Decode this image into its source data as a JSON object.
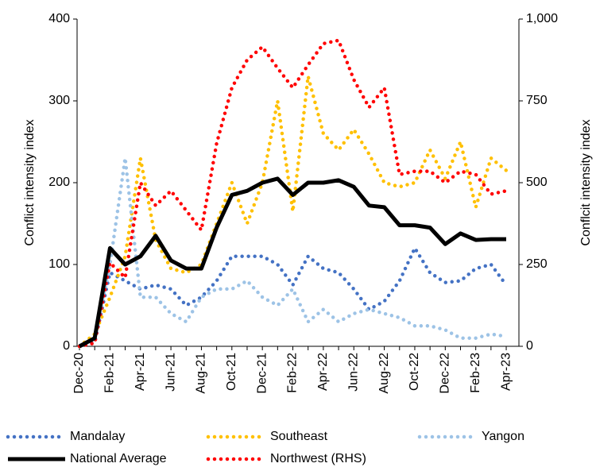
{
  "chart_data": {
    "type": "line",
    "y_label": "Conflict intensity index",
    "y2_label": "Conflcit intensity index",
    "categories": [
      "Dec-20",
      null,
      "Feb-21",
      null,
      "Apr-21",
      null,
      "Jun-21",
      null,
      "Aug-21",
      null,
      "Oct-21",
      null,
      "Dec-21",
      null,
      "Feb-22",
      null,
      "Apr-22",
      null,
      "Jun-22",
      null,
      "Aug-22",
      null,
      "Oct-22",
      null,
      "Dec-22",
      null,
      "Feb-23",
      null,
      "Apr-23"
    ],
    "ylim": [
      0,
      400
    ],
    "yticks": [
      0,
      100,
      200,
      300,
      400
    ],
    "y2lim": [
      0,
      1000
    ],
    "y2ticks": [
      0,
      250,
      500,
      750,
      {
        "value": 1000,
        "label": "1,000"
      }
    ],
    "series": [
      {
        "name": "Mandalay",
        "color": "#4472c4",
        "line_style": "dotted",
        "values": [
          0,
          5,
          90,
          80,
          70,
          75,
          70,
          50,
          60,
          80,
          110,
          110,
          110,
          100,
          75,
          110,
          95,
          90,
          70,
          45,
          55,
          80,
          120,
          90,
          78,
          80,
          95,
          100,
          75
        ]
      },
      {
        "name": "Southeast",
        "color": "#ffc000",
        "line_style": "dotted",
        "values": [
          0,
          15,
          60,
          110,
          230,
          130,
          95,
          90,
          100,
          150,
          200,
          150,
          200,
          300,
          165,
          330,
          260,
          240,
          265,
          235,
          200,
          195,
          200,
          240,
          205,
          250,
          170,
          230,
          215
        ]
      },
      {
        "name": "Yangon",
        "color": "#9dc3e6",
        "line_style": "dotted",
        "values": [
          0,
          10,
          100,
          230,
          60,
          60,
          40,
          30,
          60,
          70,
          70,
          80,
          60,
          50,
          70,
          30,
          45,
          30,
          40,
          45,
          40,
          35,
          25,
          25,
          20,
          10,
          10,
          15,
          12
        ]
      },
      {
        "name": "National Average",
        "color": "#000000",
        "line_style": "solid",
        "values": [
          0,
          10,
          120,
          100,
          110,
          135,
          105,
          95,
          95,
          145,
          185,
          190,
          200,
          205,
          185,
          200,
          200,
          203,
          195,
          172,
          170,
          148,
          148,
          145,
          125,
          138,
          130,
          131,
          131
        ]
      },
      {
        "name": "Northwest (RHS)",
        "color": "#ff0000",
        "line_style": "dotted",
        "axis": "y2",
        "values": [
          0,
          10,
          255,
          210,
          500,
          430,
          475,
          415,
          355,
          620,
          790,
          875,
          915,
          850,
          790,
          860,
          925,
          935,
          815,
          730,
          790,
          525,
          535,
          535,
          500,
          535,
          525,
          465,
          475
        ]
      }
    ]
  }
}
